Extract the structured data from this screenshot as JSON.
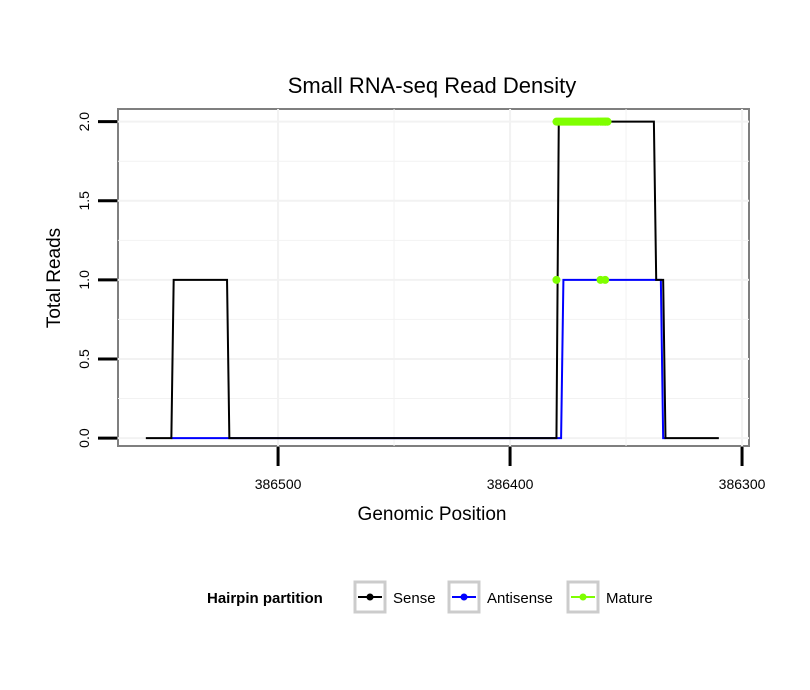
{
  "chart_data": {
    "type": "line",
    "title": "Small RNA-seq Read Density",
    "xlabel": "Genomic Position",
    "ylabel": "Total Reads",
    "xlim": [
      386569,
      386297
    ],
    "x_reversed": true,
    "ylim": [
      -0.05,
      2.08
    ],
    "x_ticks": [
      386500,
      386400,
      386300
    ],
    "x_tick_labels": [
      "386500",
      "386400",
      "386300"
    ],
    "y_ticks": [
      0,
      0.5,
      1,
      1.5,
      2
    ],
    "y_tick_labels": [
      "0.0",
      "0.5",
      "1.0",
      "1.5",
      "2.0"
    ],
    "grid": true,
    "legend": {
      "title": "Hairpin partition",
      "position": "bottom",
      "entries": [
        "Sense",
        "Antisense",
        "Mature"
      ]
    },
    "series": [
      {
        "name": "Sense",
        "color": "#000000",
        "x": [
          386557,
          386546,
          386545,
          386522,
          386521,
          386380,
          386379,
          386362,
          386361,
          386359,
          386358,
          386338,
          386337,
          386334,
          386333,
          386310
        ],
        "y": [
          0,
          0,
          1,
          1,
          0,
          0,
          2,
          2,
          2,
          2,
          2,
          2,
          1,
          1,
          0,
          0
        ]
      },
      {
        "name": "Antisense",
        "color": "#0000ff",
        "x": [
          386546,
          386520,
          386378,
          386377,
          386359,
          386356,
          386339,
          386336,
          386335,
          386334,
          386333
        ],
        "y": [
          0,
          0,
          0,
          1,
          1,
          1,
          1,
          1,
          1,
          0,
          0
        ]
      },
      {
        "name": "Mature",
        "color": "#7fff00",
        "segments": [
          {
            "x": [
              386380,
              386362
            ],
            "y": [
              2,
              2
            ]
          },
          {
            "x": [
              386359,
              386359
            ],
            "y": [
              2,
              2
            ]
          },
          {
            "x": [
              386361,
              386358
            ],
            "y": [
              2,
              2
            ]
          }
        ],
        "points": [
          {
            "x": 386380,
            "y": 1
          },
          {
            "x": 386362,
            "y": 2
          },
          {
            "x": 386359,
            "y": 2
          },
          {
            "x": 386361,
            "y": 2
          },
          {
            "x": 386358,
            "y": 2
          },
          {
            "x": 386360,
            "y": 2
          },
          {
            "x": 386361,
            "y": 1
          },
          {
            "x": 386359,
            "y": 1
          }
        ]
      }
    ]
  }
}
